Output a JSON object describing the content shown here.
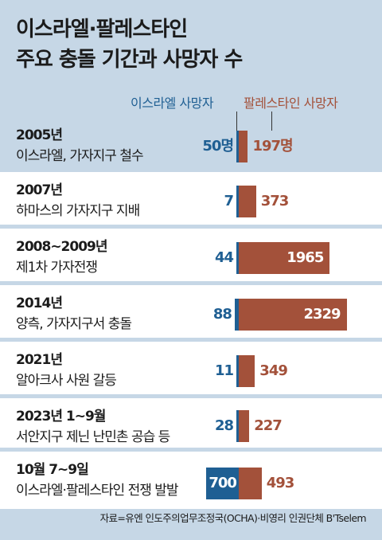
{
  "title": {
    "line1": "이스라엘·팔레스타인",
    "line2": "주요 충돌 기간과 사망자 수"
  },
  "legend": {
    "israel": "이스라엘 사망자",
    "palestine": "팔레스타인 사망자"
  },
  "source": "자료=유엔 인도주의업무조정국(OCHA)·비영리 인권단체 B'Tselem",
  "colors": {
    "background": "#c6d7e6",
    "row_background": "#ffffff",
    "israel": "#1f5f93",
    "palestine": "#a3513a"
  },
  "chart_data": {
    "type": "bar",
    "orientation": "horizontal-diverging",
    "categories": [
      "2005년 이스라엘, 가자지구 철수",
      "2007년 하마스의 가자지구 지배",
      "2008~2009년 제1차 가자전쟁",
      "2014년 양측, 가자지구서 충돌",
      "2021년 알아크사 사원 갈등",
      "2023년 1~9월 서안지구 제닌 난민촌 공습 등",
      "10월 7~9일 이스라엘·팔레스타인 전쟁 발발"
    ],
    "series": [
      {
        "name": "이스라엘 사망자",
        "values": [
          50,
          7,
          44,
          88,
          11,
          28,
          700
        ]
      },
      {
        "name": "팔레스타인 사망자",
        "values": [
          197,
          373,
          1965,
          2329,
          349,
          227,
          493
        ]
      }
    ],
    "rows": [
      {
        "year": "2005년",
        "desc": "이스라엘, 가자지구 철수",
        "israel": 50,
        "palestine": 197,
        "israel_label": "50명",
        "palestine_label": "197명"
      },
      {
        "year": "2007년",
        "desc": "하마스의 가자지구 지배",
        "israel": 7,
        "palestine": 373,
        "israel_label": "7",
        "palestine_label": "373"
      },
      {
        "year": "2008~2009년",
        "desc": "제1차 가자전쟁",
        "israel": 44,
        "palestine": 1965,
        "israel_label": "44",
        "palestine_label": "1965"
      },
      {
        "year": "2014년",
        "desc": "양측, 가자지구서 충돌",
        "israel": 88,
        "palestine": 2329,
        "israel_label": "88",
        "palestine_label": "2329"
      },
      {
        "year": "2021년",
        "desc": "알아크사 사원 갈등",
        "israel": 11,
        "palestine": 349,
        "israel_label": "11",
        "palestine_label": "349"
      },
      {
        "year": "2023년 1~9월",
        "desc": "서안지구 제닌 난민촌 공습 등",
        "israel": 28,
        "palestine": 227,
        "israel_label": "28",
        "palestine_label": "227"
      },
      {
        "year": "10월 7~9일",
        "desc": "이스라엘·팔레스타인 전쟁 발발",
        "israel": 700,
        "palestine": 493,
        "israel_label": "700",
        "palestine_label": "493"
      }
    ]
  }
}
